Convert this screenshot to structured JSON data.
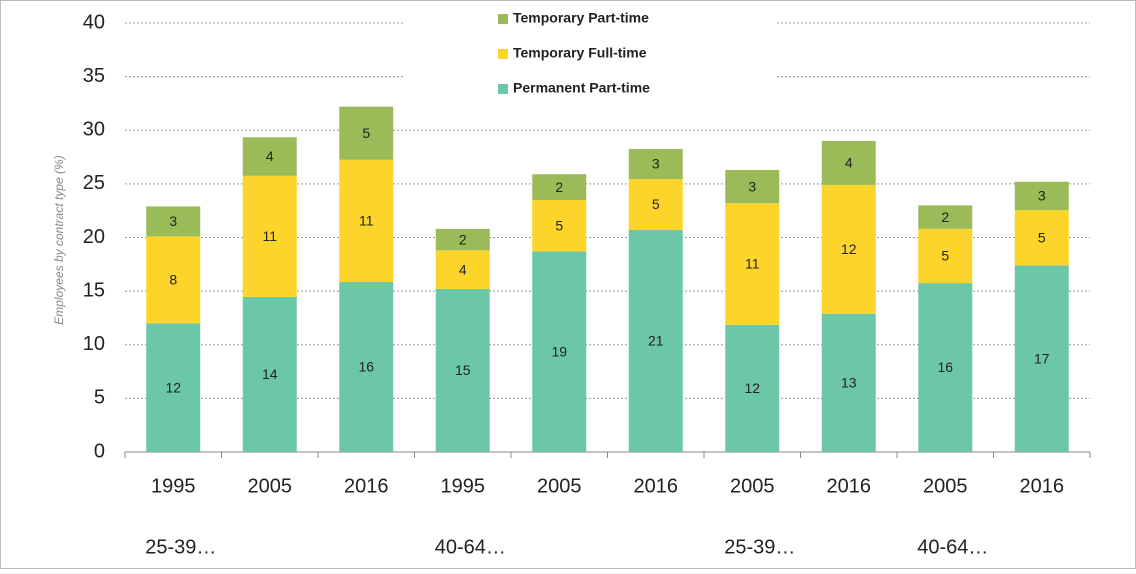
{
  "chart_data": {
    "type": "stacked_bar",
    "y_label": "Employees by contract type (%)",
    "categories": [
      "1995",
      "2005",
      "2016",
      "1995",
      "2005",
      "2016",
      "2005",
      "2016",
      "2005",
      "2016"
    ],
    "group_labels": [
      "25-39…",
      null,
      null,
      "40-64…",
      null,
      null,
      "25-39…",
      null,
      "40-64…",
      null
    ],
    "series": [
      {
        "name": "Permanent Part-time",
        "color": "#6cc7a8",
        "values": [
          12.0,
          14.45,
          15.85,
          15.2,
          18.7,
          20.7,
          11.85,
          12.9,
          15.75,
          17.4
        ],
        "value_labels": [
          "12",
          "14",
          "16",
          "15",
          "19",
          "21",
          "12",
          "13",
          "16",
          "17"
        ]
      },
      {
        "name": "Temporary Full-time",
        "color": "#fdd52a",
        "values": [
          8.1,
          11.3,
          11.4,
          3.6,
          4.8,
          4.75,
          11.35,
          12.0,
          5.05,
          5.15
        ],
        "value_labels": [
          "8",
          "11",
          "11",
          "4",
          "5",
          "5",
          "11",
          "12",
          "5",
          "5"
        ]
      },
      {
        "name": "Temporary Part-time",
        "color": "#9bbb59",
        "values": [
          2.8,
          3.6,
          4.95,
          2.0,
          2.4,
          2.8,
          3.1,
          4.1,
          2.2,
          2.65
        ],
        "value_labels": [
          "3",
          "4",
          "5",
          "2",
          "2",
          "3",
          "3",
          "4",
          "2",
          "3"
        ]
      }
    ],
    "ylim": [
      0,
      40
    ],
    "yticks": [
      0,
      5,
      10,
      15,
      20,
      25,
      30,
      35,
      40
    ],
    "grid": true
  }
}
